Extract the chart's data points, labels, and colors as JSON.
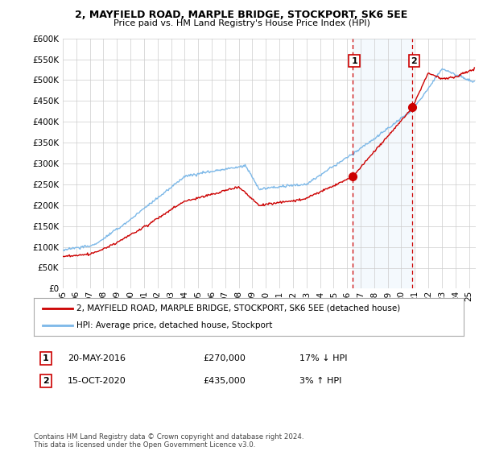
{
  "title": "2, MAYFIELD ROAD, MARPLE BRIDGE, STOCKPORT, SK6 5EE",
  "subtitle": "Price paid vs. HM Land Registry's House Price Index (HPI)",
  "ylim": [
    0,
    600000
  ],
  "yticks": [
    0,
    50000,
    100000,
    150000,
    200000,
    250000,
    300000,
    350000,
    400000,
    450000,
    500000,
    550000,
    600000
  ],
  "xlim_start": 1995.0,
  "xlim_end": 2025.5,
  "hpi_color": "#7cb8e8",
  "hpi_fill_color": "#d6eaf8",
  "price_color": "#cc0000",
  "marker1_year": 2016.38,
  "marker1_price": 270000,
  "marker2_year": 2020.79,
  "marker2_price": 435000,
  "note1_num": "1",
  "note1_date": "20-MAY-2016",
  "note1_price": "£270,000",
  "note1_pct": "17% ↓ HPI",
  "note2_num": "2",
  "note2_date": "15-OCT-2020",
  "note2_price": "£435,000",
  "note2_pct": "3% ↑ HPI",
  "legend_label1": "2, MAYFIELD ROAD, MARPLE BRIDGE, STOCKPORT, SK6 5EE (detached house)",
  "legend_label2": "HPI: Average price, detached house, Stockport",
  "footer": "Contains HM Land Registry data © Crown copyright and database right 2024.\nThis data is licensed under the Open Government Licence v3.0.",
  "background_color": "#ffffff",
  "grid_color": "#cccccc"
}
